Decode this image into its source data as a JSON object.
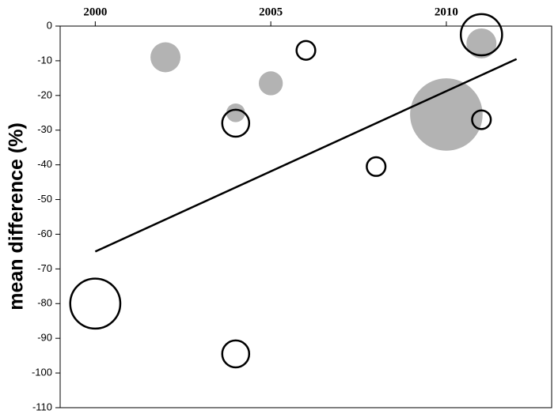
{
  "chart_data": {
    "type": "bubble",
    "y_label": "mean difference (%)",
    "xlim": [
      1999,
      2013
    ],
    "xticks": [
      2000,
      2005,
      2010
    ],
    "ylim": [
      -110,
      0
    ],
    "yticks": [
      0,
      -10,
      -20,
      -30,
      -40,
      -50,
      -60,
      -70,
      -80,
      -90,
      -100,
      -110
    ],
    "series": [
      {
        "color": "#b3b3b3",
        "filled": true,
        "x": [
          2002,
          2004,
          2005,
          2010,
          2011
        ],
        "values": [
          -9,
          -25,
          -16.5,
          -25.5,
          -5
        ],
        "size": [
          3.6,
          1.4,
          2.3,
          21,
          3.6
        ]
      },
      {
        "color": "#000000",
        "filled": false,
        "x": [
          2004,
          2006,
          2008,
          2011,
          2011,
          2000,
          2004
        ],
        "values": [
          -28,
          -7,
          -40.5,
          -2.5,
          -27,
          -80,
          -94.5
        ],
        "size": [
          2.9,
          1.4,
          1.4,
          6.8,
          1.4,
          10,
          2.9
        ]
      }
    ],
    "trend": {
      "x": [
        2000,
        2012
      ],
      "values": [
        -65,
        -9.5
      ]
    }
  }
}
